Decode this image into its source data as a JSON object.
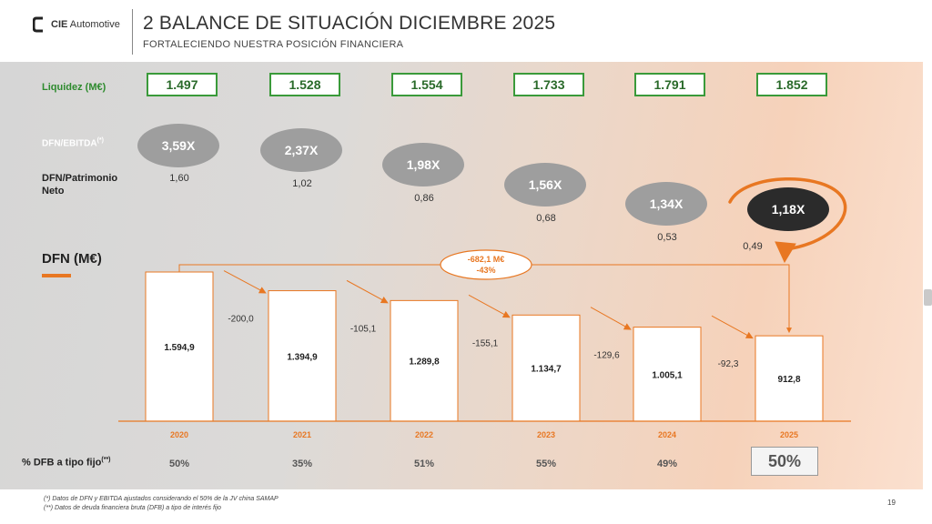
{
  "header": {
    "logo_text_bold": "CIE",
    "logo_text": " Automotive",
    "title": "2 BALANCE DE SITUACIÓN DICIEMBRE 2025",
    "subtitle": "FORTALECIENDO NUESTRA POSICIÓN FINANCIERA"
  },
  "labels": {
    "liquidez": "Liquidez (M€)",
    "dfn_ebitda": "DFN/EBITDA",
    "dfn_ebitda_sup": "(*)",
    "dfn_patrimonio_1": "DFN/Patrimonio",
    "dfn_patrimonio_2": "Neto",
    "dfn": "DFN (M€)",
    "pct_fixed": "% DFB a tipo fijo",
    "pct_fixed_sup": "(**)"
  },
  "chart_data": {
    "type": "bar",
    "categories": [
      "2020",
      "2021",
      "2022",
      "2023",
      "2024",
      "2025"
    ],
    "series": [
      {
        "name": "DFN (M€)",
        "values": [
          1594.9,
          1394.9,
          1289.8,
          1134.7,
          1005.1,
          912.8
        ]
      }
    ],
    "value_labels": [
      "1.594,9",
      "1.394,9",
      "1.289,8",
      "1.134,7",
      "1.005,1",
      "912,8"
    ],
    "deltas": [
      "-200,0",
      "-105,1",
      "-155,1",
      "-129,6",
      "-92,3"
    ],
    "total_change": {
      "line1": "-682,1 M€",
      "line2": "-43%"
    },
    "liquidez": [
      "1.497",
      "1.528",
      "1.554",
      "1.733",
      "1.791",
      "1.852"
    ],
    "dfn_ebitda": [
      "3,59X",
      "2,37X",
      "1,98X",
      "1,56X",
      "1,34X",
      "1,18X"
    ],
    "dfn_patrimonio": [
      "1,60",
      "1,02",
      "0,86",
      "0,68",
      "0,53",
      "0,49"
    ],
    "pct_fixed": [
      "50%",
      "35%",
      "51%",
      "55%",
      "49%",
      "50%"
    ],
    "colors": {
      "bar_border": "#e87722",
      "accent": "#e87722",
      "liquidez": "#3a9a3a",
      "ellipse": "#9e9e9e",
      "ellipse_highlight": "#2b2b2b"
    }
  },
  "footnotes": [
    "(*) Datos de DFN y EBITDA ajustados considerando el 50% de la JV china SAMAP",
    "(**) Datos de deuda financiera bruta (DFB) a tipo de interés fijo"
  ],
  "page_number": "19"
}
